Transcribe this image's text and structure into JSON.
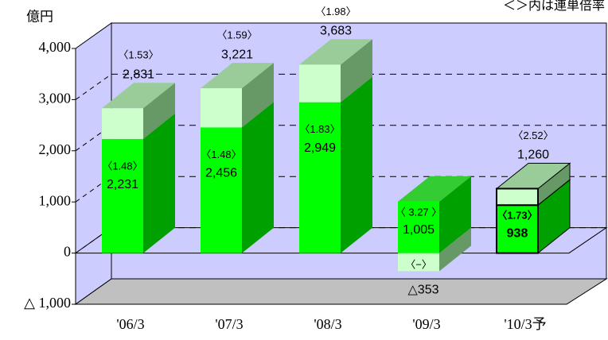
{
  "chart_data": {
    "type": "bar3d_stacked",
    "unit_label": "億円",
    "note": "＜＞内は連単倍率",
    "categories": [
      "'06/3",
      "'07/3",
      "'08/3",
      "'09/3",
      "'10/3予"
    ],
    "series": [
      {
        "color": "#00ff00",
        "values": [
          2231,
          2456,
          2949,
          1005,
          938
        ],
        "value_labels": [
          "2,231",
          "2,456",
          "2,949",
          "1,005",
          "938"
        ],
        "ratio_labels": [
          "〈1.48〉",
          "〈1.48〉",
          "〈1.83〉",
          "〈 3.27 〉",
          "〈1.73〉"
        ]
      },
      {
        "color": "#ccffcc",
        "values": [
          600,
          765,
          734,
          -353,
          322
        ],
        "top_labels": [
          "2,831",
          "3,221",
          "3,683",
          "△353",
          "1,260"
        ],
        "ratio_labels": [
          "〈1.53〉",
          "〈1.59〉",
          "〈1.98〉",
          "〈−〉",
          "〈2.52〉"
        ]
      }
    ],
    "ylim": [
      -1000,
      4000
    ],
    "yticks": [
      {
        "value": -1000,
        "label": "△ 1,000"
      },
      0,
      {
        "value": 1000,
        "label": "1,000"
      },
      {
        "value": 2000,
        "label": "2,000"
      },
      {
        "value": 3000,
        "label": "3,000"
      },
      {
        "value": 4000,
        "label": "4,000"
      }
    ],
    "grid": true
  }
}
